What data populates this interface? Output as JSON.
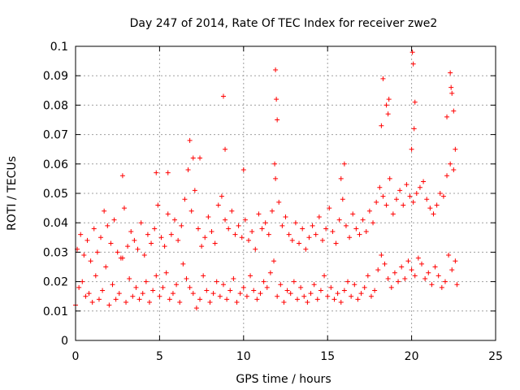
{
  "chart_data": {
    "type": "scatter",
    "title": "Day 247 of 2014, Rate Of TEC Index for receiver zwe2",
    "xlabel": "GPS time / hours",
    "ylabel": "ROTI / TECUs",
    "xlim": [
      0,
      25
    ],
    "ylim": [
      0,
      0.1
    ],
    "xticks": [
      "0",
      "5",
      "10",
      "15",
      "20",
      "25"
    ],
    "yticks": [
      "0",
      "0.01",
      "0.02",
      "0.03",
      "0.04",
      "0.05",
      "0.06",
      "0.07",
      "0.08",
      "0.09",
      "0.1"
    ],
    "grid": true,
    "marker": "+",
    "color": "#ff0000",
    "series": [
      {
        "name": "ROTI",
        "x": [
          0.0,
          0.2,
          0.4,
          0.6,
          0.8,
          1.0,
          1.2,
          1.4,
          1.6,
          1.8,
          2.0,
          2.2,
          2.4,
          2.6,
          2.8,
          3.0,
          3.2,
          3.4,
          3.6,
          3.8,
          4.0,
          4.2,
          4.4,
          4.6,
          4.8,
          5.0,
          5.2,
          5.4,
          5.6,
          5.8,
          6.0,
          6.2,
          6.4,
          6.6,
          6.8,
          7.0,
          7.2,
          7.4,
          7.6,
          7.8,
          8.0,
          8.2,
          8.4,
          8.6,
          8.8,
          9.0,
          9.2,
          9.4,
          9.6,
          9.8,
          10.0,
          10.2,
          10.4,
          10.6,
          10.8,
          11.0,
          11.2,
          11.4,
          11.6,
          11.8,
          12.0,
          12.2,
          12.4,
          12.6,
          12.8,
          13.0,
          13.2,
          13.4,
          13.6,
          13.8,
          14.0,
          14.2,
          14.4,
          14.6,
          14.8,
          15.0,
          15.2,
          15.4,
          15.6,
          15.8,
          16.0,
          16.2,
          16.4,
          16.6,
          16.8,
          17.0,
          17.2,
          17.4,
          17.6,
          17.8,
          18.0,
          18.2,
          18.4,
          18.6,
          18.8,
          19.0,
          19.2,
          19.4,
          19.6,
          19.8,
          20.0,
          20.2,
          20.4,
          20.6,
          20.8,
          21.0,
          21.2,
          21.4,
          21.6,
          21.8,
          22.0,
          22.2,
          22.4,
          22.6,
          22.7,
          0.1,
          0.3,
          0.5,
          0.7,
          0.9,
          1.1,
          1.3,
          1.5,
          1.7,
          1.9,
          2.1,
          2.3,
          2.5,
          2.7,
          2.9,
          3.1,
          3.3,
          3.5,
          3.7,
          3.9,
          4.1,
          4.3,
          4.5,
          4.7,
          4.9,
          5.1,
          5.3,
          5.5,
          5.7,
          5.9,
          6.1,
          6.3,
          6.5,
          6.7,
          6.9,
          7.1,
          7.3,
          7.5,
          7.7,
          7.9,
          8.1,
          8.3,
          8.5,
          8.7,
          8.9,
          9.1,
          9.3,
          9.5,
          9.7,
          9.9,
          10.1,
          10.3,
          10.5,
          10.7,
          10.9,
          11.1,
          11.3,
          11.5,
          11.7,
          11.9,
          12.1,
          12.3,
          12.5,
          12.7,
          12.9,
          13.1,
          13.3,
          13.5,
          13.7,
          13.9,
          14.1,
          14.3,
          14.5,
          14.7,
          14.9,
          15.1,
          15.3,
          15.5,
          15.7,
          15.9,
          16.1,
          16.3,
          16.5,
          16.7,
          16.9,
          17.1,
          17.3,
          17.5,
          17.7,
          17.9,
          18.1,
          18.3,
          18.5,
          18.7,
          18.9,
          19.1,
          19.3,
          19.5,
          19.7,
          19.9,
          20.1,
          20.3,
          20.5,
          20.7,
          20.9,
          21.1,
          21.3,
          21.5,
          21.7,
          21.9,
          22.1,
          22.3,
          22.5,
          2.8,
          6.8,
          7.0,
          7.4,
          8.8,
          8.9,
          11.9,
          11.95,
          12.0,
          11.85,
          18.2,
          18.3,
          18.5,
          18.6,
          18.65,
          20.05,
          20.1,
          20.15,
          20.2,
          20.0,
          22.1,
          22.3,
          22.35,
          22.4,
          22.5,
          22.6,
          16.0,
          15.8,
          10.0,
          4.8,
          5.5
        ],
        "y": [
          0.012,
          0.018,
          0.02,
          0.015,
          0.016,
          0.013,
          0.022,
          0.014,
          0.017,
          0.025,
          0.012,
          0.019,
          0.014,
          0.016,
          0.028,
          0.013,
          0.021,
          0.015,
          0.018,
          0.014,
          0.016,
          0.02,
          0.013,
          0.017,
          0.022,
          0.015,
          0.018,
          0.023,
          0.014,
          0.016,
          0.019,
          0.013,
          0.026,
          0.021,
          0.018,
          0.016,
          0.011,
          0.014,
          0.022,
          0.017,
          0.013,
          0.016,
          0.02,
          0.015,
          0.019,
          0.014,
          0.017,
          0.021,
          0.013,
          0.016,
          0.018,
          0.015,
          0.022,
          0.017,
          0.014,
          0.016,
          0.02,
          0.018,
          0.023,
          0.027,
          0.015,
          0.019,
          0.013,
          0.017,
          0.016,
          0.02,
          0.014,
          0.018,
          0.015,
          0.013,
          0.016,
          0.019,
          0.014,
          0.017,
          0.022,
          0.015,
          0.018,
          0.014,
          0.016,
          0.013,
          0.017,
          0.02,
          0.015,
          0.019,
          0.014,
          0.016,
          0.018,
          0.022,
          0.015,
          0.017,
          0.024,
          0.029,
          0.026,
          0.021,
          0.018,
          0.023,
          0.02,
          0.025,
          0.021,
          0.027,
          0.024,
          0.022,
          0.028,
          0.026,
          0.021,
          0.023,
          0.019,
          0.025,
          0.022,
          0.018,
          0.02,
          0.029,
          0.024,
          0.027,
          0.019,
          0.031,
          0.036,
          0.029,
          0.034,
          0.027,
          0.038,
          0.03,
          0.035,
          0.044,
          0.039,
          0.033,
          0.041,
          0.03,
          0.028,
          0.045,
          0.032,
          0.037,
          0.034,
          0.031,
          0.04,
          0.029,
          0.036,
          0.033,
          0.038,
          0.046,
          0.035,
          0.032,
          0.043,
          0.036,
          0.041,
          0.034,
          0.039,
          0.048,
          0.058,
          0.044,
          0.051,
          0.038,
          0.032,
          0.035,
          0.042,
          0.037,
          0.033,
          0.046,
          0.049,
          0.041,
          0.038,
          0.044,
          0.036,
          0.039,
          0.035,
          0.041,
          0.034,
          0.037,
          0.031,
          0.043,
          0.038,
          0.04,
          0.036,
          0.044,
          0.055,
          0.047,
          0.039,
          0.042,
          0.036,
          0.034,
          0.04,
          0.033,
          0.038,
          0.031,
          0.035,
          0.039,
          0.036,
          0.042,
          0.034,
          0.038,
          0.045,
          0.037,
          0.033,
          0.041,
          0.048,
          0.039,
          0.035,
          0.043,
          0.038,
          0.036,
          0.041,
          0.037,
          0.044,
          0.04,
          0.047,
          0.052,
          0.049,
          0.046,
          0.055,
          0.043,
          0.048,
          0.051,
          0.046,
          0.053,
          0.049,
          0.047,
          0.05,
          0.052,
          0.054,
          0.048,
          0.045,
          0.043,
          0.046,
          0.05,
          0.049,
          0.056,
          0.06,
          0.058,
          0.056,
          0.068,
          0.062,
          0.062,
          0.083,
          0.065,
          0.092,
          0.082,
          0.075,
          0.06,
          0.073,
          0.089,
          0.08,
          0.077,
          0.082,
          0.098,
          0.094,
          0.072,
          0.081,
          0.065,
          0.076,
          0.091,
          0.086,
          0.084,
          0.078,
          0.065,
          0.06,
          0.055,
          0.058,
          0.057,
          0.057
        ]
      }
    ]
  }
}
